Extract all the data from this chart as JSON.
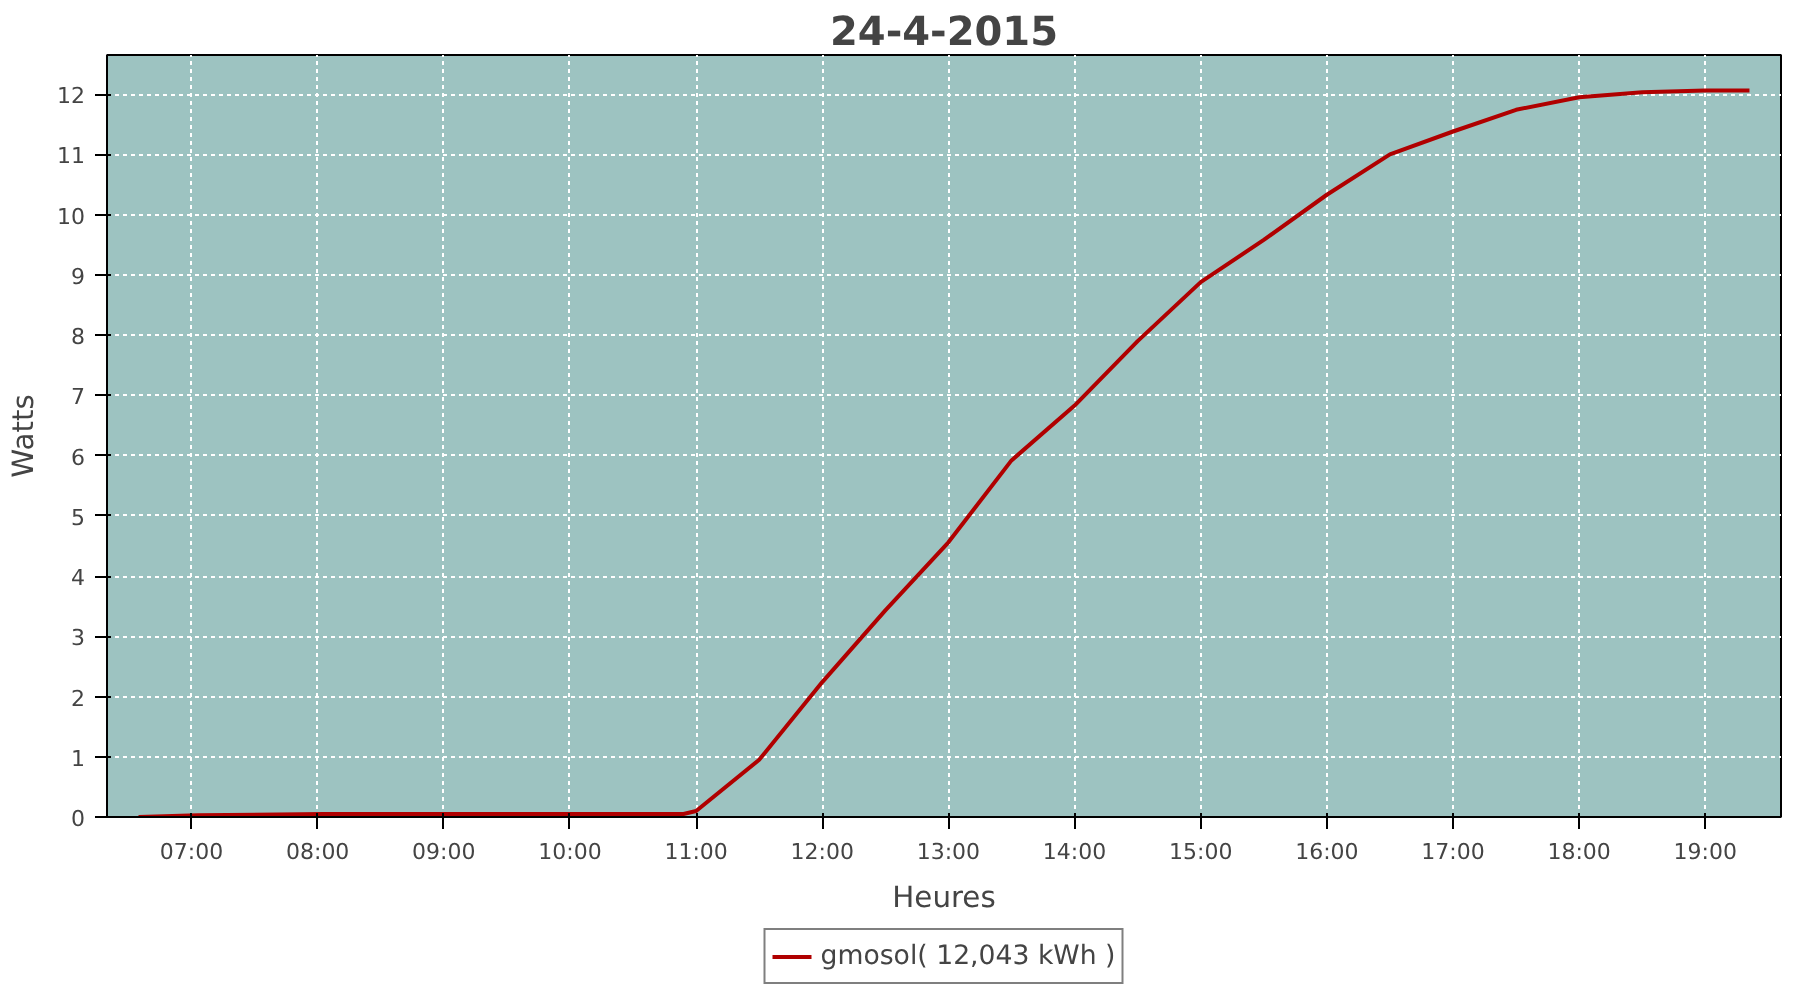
{
  "chart_data": {
    "type": "line",
    "title": "24-4-2015",
    "xlabel": "Heures",
    "ylabel": "Watts",
    "xlim": [
      6.33,
      19.6
    ],
    "ylim": [
      0,
      12.65
    ],
    "xticks": [
      {
        "value": 7,
        "label": "07:00"
      },
      {
        "value": 8,
        "label": "08:00"
      },
      {
        "value": 9,
        "label": "09:00"
      },
      {
        "value": 10,
        "label": "10:00"
      },
      {
        "value": 11,
        "label": "11:00"
      },
      {
        "value": 12,
        "label": "12:00"
      },
      {
        "value": 13,
        "label": "13:00"
      },
      {
        "value": 14,
        "label": "14:00"
      },
      {
        "value": 15,
        "label": "15:00"
      },
      {
        "value": 16,
        "label": "16:00"
      },
      {
        "value": 17,
        "label": "17:00"
      },
      {
        "value": 18,
        "label": "18:00"
      },
      {
        "value": 19,
        "label": "19:00"
      }
    ],
    "yticks": [
      0,
      1,
      2,
      3,
      4,
      5,
      6,
      7,
      8,
      9,
      10,
      11,
      12
    ],
    "grid": true,
    "legend": "bottom",
    "line_style": "solid",
    "x": [
      6.58,
      7.05,
      8.05,
      9.0,
      10.0,
      10.9,
      11.0,
      11.5,
      12.0,
      12.5,
      13.0,
      13.5,
      14.0,
      14.5,
      15.0,
      15.5,
      16.0,
      16.5,
      17.0,
      17.5,
      18.0,
      18.5,
      19.0,
      19.35
    ],
    "series": [
      {
        "name": "gmosol( 12,043 kWh )",
        "color": "#b00000",
        "values": [
          0.0,
          0.03,
          0.05,
          0.05,
          0.05,
          0.05,
          0.1,
          0.95,
          2.24,
          3.43,
          4.56,
          5.92,
          6.83,
          7.9,
          8.88,
          9.58,
          10.33,
          11.0,
          11.38,
          11.74,
          11.95,
          12.03,
          12.06,
          12.06
        ]
      }
    ]
  }
}
